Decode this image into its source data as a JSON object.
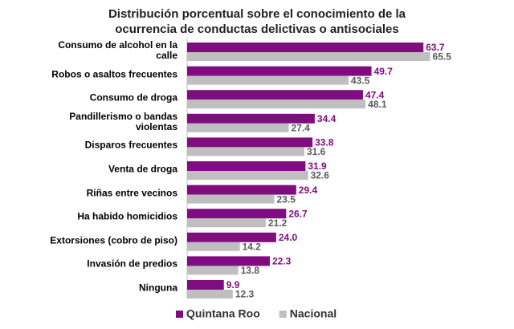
{
  "chart_data": {
    "type": "bar",
    "orientation": "horizontal",
    "title": "Distribución porcentual sobre el conocimiento de la ocurrencia de conductas delictivas o antisociales",
    "categories": [
      "Consumo de alcohol en la calle",
      "Robos o asaltos frecuentes",
      "Consumo de droga",
      "Pandillerismo o bandas violentas",
      "Disparos frecuentes",
      "Venta de droga",
      "Riñas entre vecinos",
      "Ha habido homicidios",
      "Extorsiones (cobro de piso)",
      "Invasión de predios",
      "Ninguna"
    ],
    "series": [
      {
        "name": "Quintana Roo",
        "color": "#800d80",
        "values": [
          63.7,
          49.7,
          47.4,
          34.4,
          33.8,
          31.9,
          29.4,
          26.7,
          24.0,
          22.3,
          9.9
        ],
        "value_labels": [
          "63.7",
          "49.7",
          "47.4",
          "34.4",
          "33.8",
          "31.9",
          "29.4",
          "26.7",
          "24.0",
          "22.3",
          "9.9"
        ]
      },
      {
        "name": "Nacional",
        "color": "#bfbfbf",
        "values": [
          65.5,
          43.5,
          48.1,
          27.4,
          31.6,
          32.6,
          23.5,
          21.2,
          14.2,
          13.8,
          12.3
        ],
        "value_labels": [
          "65.5",
          "43.5",
          "48.1",
          "27.4",
          "31.6",
          "32.6",
          "23.5",
          "21.2",
          "14.2",
          "13.8",
          "12.3"
        ]
      }
    ],
    "xlim": [
      0,
      84
    ],
    "legend": "bottom"
  }
}
